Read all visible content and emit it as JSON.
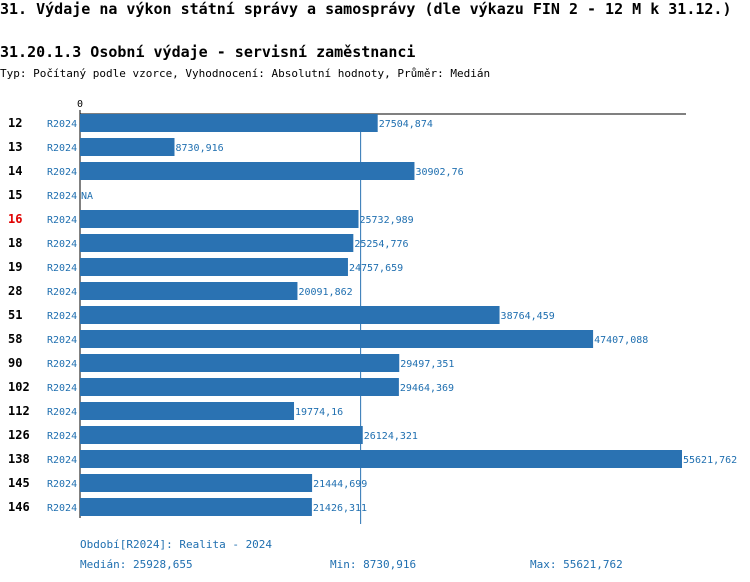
{
  "title": "31. Výdaje na výkon státní správy a samosprávy (dle výkazu FIN 2 - 12 M k 31.12.)",
  "subtitle": "31.20.1.3 Osobní výdaje - servisní zaměstnanci",
  "type_line": "Typ: Počítaný podle vzorce, Vyhodnocení: Absolutní hodnoty, Průměr: Medián",
  "colors": {
    "bar": "#2a72b2",
    "text_blue": "#1f6fb0",
    "highlight": "#e00000",
    "axis": "#000000"
  },
  "chart_data": {
    "type": "bar",
    "orientation": "horizontal",
    "x_tick_labels": [
      "0"
    ],
    "xlim": [
      0,
      55621.762
    ],
    "period": "R2024",
    "median_line": 25928.655,
    "highlighted_category": "16",
    "categories": [
      "12",
      "13",
      "14",
      "15",
      "16",
      "18",
      "19",
      "28",
      "51",
      "58",
      "90",
      "102",
      "112",
      "126",
      "138",
      "145",
      "146"
    ],
    "values": [
      27504.874,
      8730.916,
      30902.76,
      null,
      25732.989,
      25254.776,
      24757.659,
      20091.862,
      38764.459,
      47407.088,
      29497.351,
      29464.369,
      19774.16,
      26124.321,
      55621.762,
      21444.699,
      21426.311
    ],
    "value_labels": [
      "27504,874",
      "8730,916",
      "30902,76",
      "NA",
      "25732,989",
      "25254,776",
      "24757,659",
      "20091,862",
      "38764,459",
      "47407,088",
      "29497,351",
      "29464,369",
      "19774,16",
      "26124,321",
      "55621,762",
      "21444,699",
      "21426,311"
    ]
  },
  "footer": {
    "period": "Období[R2024]: Realita - 2024",
    "median": "Medián: 25928,655",
    "min": "Min: 8730,916",
    "max": "Max: 55621,762"
  }
}
